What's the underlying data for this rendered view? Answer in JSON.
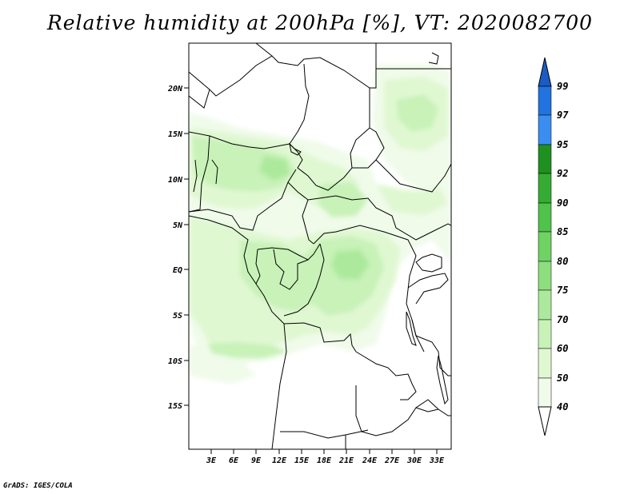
{
  "title": "Relative humidity at 200hPa [%], VT: 2020082700",
  "credit": "GrADS: IGES/COLA",
  "map": {
    "lat_labels": [
      "20N",
      "15N",
      "10N",
      "5N",
      "EQ",
      "5S",
      "10S",
      "15S"
    ],
    "lon_labels": [
      "3E",
      "6E",
      "9E",
      "12E",
      "15E",
      "18E",
      "21E",
      "24E",
      "27E",
      "30E",
      "33E"
    ]
  },
  "colorbar": {
    "levels": [
      "40",
      "50",
      "60",
      "70",
      "75",
      "80",
      "85",
      "90",
      "92",
      "95",
      "97",
      "99"
    ],
    "colors": {
      "c40_50": "#f0fbea",
      "c50_60": "#e0f8d2",
      "c60_70": "#c8f2b8",
      "c70_75": "#ace99c",
      "c75_80": "#8ede7e",
      "c80_85": "#6fd363",
      "c85_90": "#4fc34a",
      "c90_92": "#36ab33",
      "c92_95": "#1f9020",
      "c95_97": "#3b8ef0",
      "c97_99": "#2273df",
      "c99up": "#1a5cc4"
    }
  }
}
